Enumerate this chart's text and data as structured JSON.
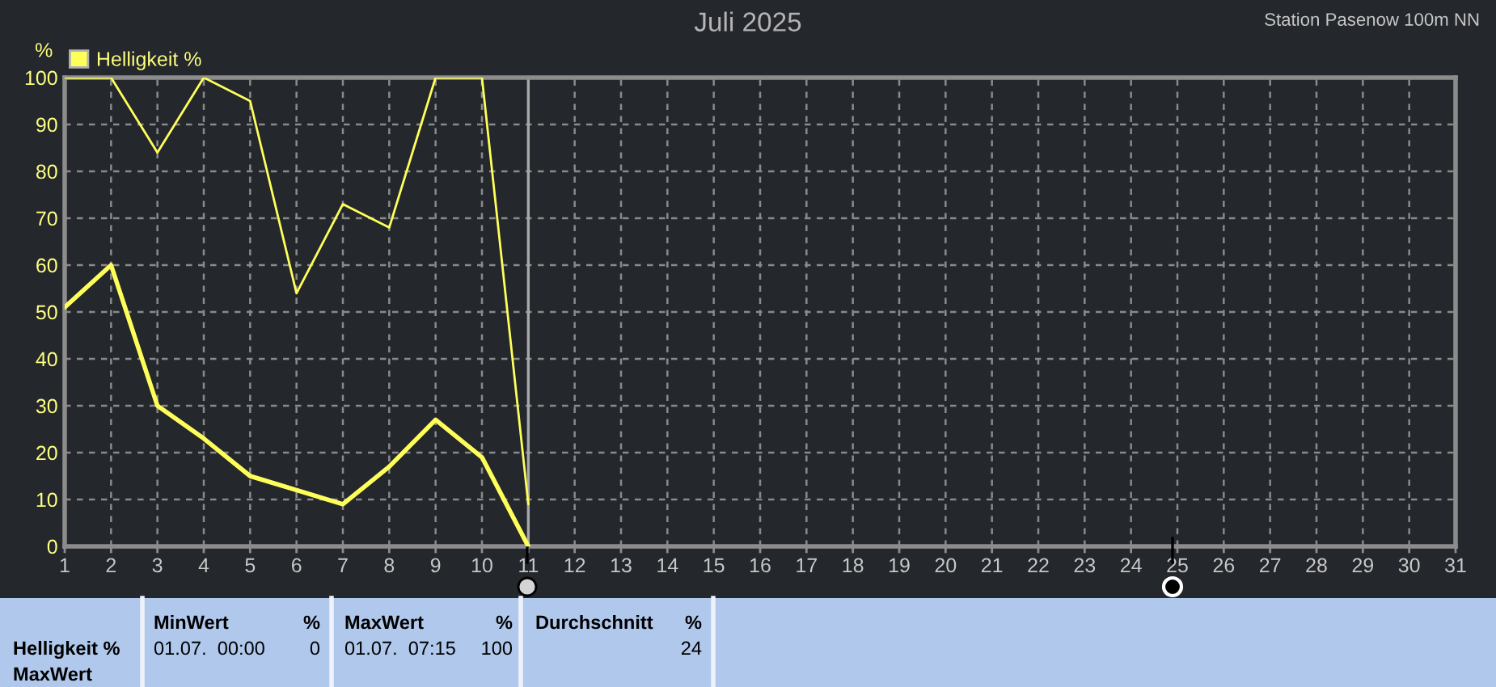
{
  "chart_data": {
    "type": "line",
    "title": "Juli 2025",
    "subtitle": "Station Pasenow 100m NN",
    "ylabel": "%",
    "x": [
      1,
      2,
      3,
      4,
      5,
      6,
      7,
      8,
      9,
      10,
      11
    ],
    "series": [
      {
        "color": "#ffff5a",
        "values": [
          100,
          100,
          84,
          100,
          95,
          54,
          73,
          68,
          100,
          100,
          9
        ]
      },
      {
        "name": "Helligkeit %",
        "color": "#ffff5a",
        "values": [
          51,
          60,
          30,
          23,
          15,
          12,
          9,
          17,
          27,
          19,
          0
        ]
      }
    ],
    "xlim": [
      1,
      31
    ],
    "xticks": [
      1,
      2,
      3,
      4,
      5,
      6,
      7,
      8,
      9,
      10,
      11,
      12,
      13,
      14,
      15,
      16,
      17,
      18,
      19,
      20,
      21,
      22,
      23,
      24,
      25,
      26,
      27,
      28,
      29,
      30,
      31
    ],
    "ylim": [
      0,
      100
    ],
    "yticks": [
      0,
      10,
      20,
      30,
      40,
      50,
      60,
      70,
      80,
      90,
      100
    ],
    "grid": true,
    "legend": "top left",
    "marker": "none",
    "line_style": "solid",
    "ref_lines": [
      {
        "axis": "x",
        "value": 11,
        "color": "#a8a8a8"
      }
    ],
    "annotations": [
      "Helligkeit %",
      "MaxWert",
      "MinWert",
      "%",
      "01.07.  00:00",
      "0",
      "MaxWert",
      "%",
      "01.07.  07:15",
      "100",
      "Durchschnitt",
      "%",
      "24"
    ]
  }
}
